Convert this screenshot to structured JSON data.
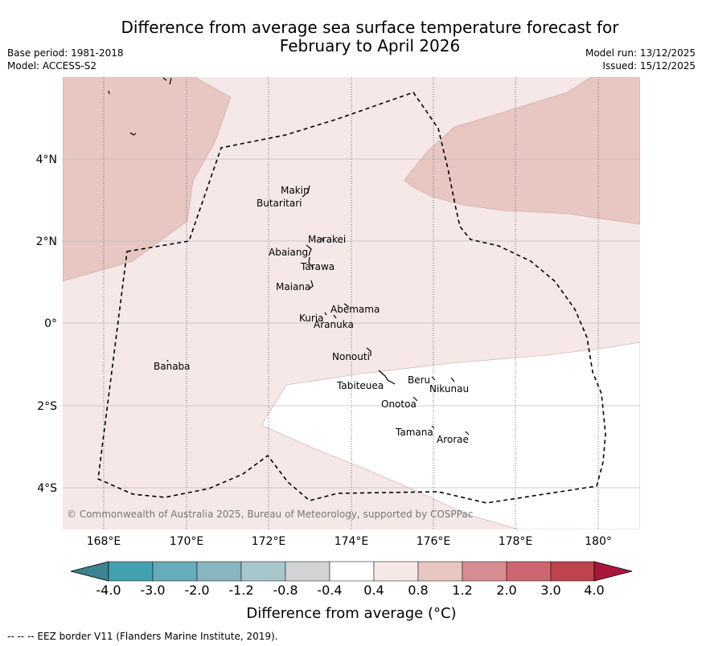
{
  "title": {
    "line1": "Difference from average sea surface temperature forecast for",
    "line2": "February to April 2026"
  },
  "meta": {
    "base_period": "Base period: 1981-2018",
    "model": "Model: ACCESS-S2",
    "model_run": "Model run: 13/12/2025",
    "issued": "Issued: 15/12/2025"
  },
  "map": {
    "lon_labels": [
      "168°E",
      "170°E",
      "172°E",
      "174°E",
      "176°E",
      "178°E",
      "180°"
    ],
    "lat_labels": [
      "4°N",
      "2°N",
      "0°",
      "2°S",
      "4°S"
    ],
    "lon_values": [
      168,
      170,
      172,
      174,
      176,
      178,
      180
    ],
    "lat_values": [
      4,
      2,
      0,
      -2,
      -4
    ],
    "extent": {
      "lon": [
        167,
        181
      ],
      "lat": [
        -5,
        6
      ]
    },
    "islands": [
      {
        "name": "Makin",
        "lon": 172.6,
        "lat": 3.2
      },
      {
        "name": "Butaritari",
        "lon": 172.3,
        "lat": 2.9
      },
      {
        "name": "Marakei",
        "lon": 173.35,
        "lat": 2.05
      },
      {
        "name": "Abaiang",
        "lon": 172.4,
        "lat": 1.75
      },
      {
        "name": "Tarawa",
        "lon": 173.15,
        "lat": 1.4
      },
      {
        "name": "Maiana",
        "lon": 172.55,
        "lat": 0.9
      },
      {
        "name": "Abemama",
        "lon": 174.0,
        "lat": 0.35
      },
      {
        "name": "Kuria",
        "lon": 172.95,
        "lat": 0.12
      },
      {
        "name": "Aranuka",
        "lon": 173.95,
        "lat": -0.02
      },
      {
        "name": "Nonouti",
        "lon": 173.95,
        "lat": -0.8
      },
      {
        "name": "Banaba",
        "lon": 169.6,
        "lat": -1.05
      },
      {
        "name": "Beru",
        "lon": 175.6,
        "lat": -1.37
      },
      {
        "name": "Nikunau",
        "lon": 176.35,
        "lat": -1.6
      },
      {
        "name": "Tabiteuea",
        "lon": 174.2,
        "lat": -1.55
      },
      {
        "name": "Onotoa",
        "lon": 175.1,
        "lat": -2.0
      },
      {
        "name": "Tamana",
        "lon": 175.5,
        "lat": -2.7
      },
      {
        "name": "Arorae",
        "lon": 176.4,
        "lat": -2.85
      }
    ],
    "copyright": "© Commonwealth of Australia 2025, Bureau of Meteorology, supported by COSPPac"
  },
  "colorbar": {
    "ticks": [
      "-4.0",
      "-3.0",
      "-2.0",
      "-1.2",
      "-0.8",
      "-0.4",
      "0.4",
      "0.8",
      "1.2",
      "2.0",
      "3.0",
      "4.0"
    ],
    "colors": [
      "#43a0b0",
      "#67acba",
      "#87b6c1",
      "#a8c7cc",
      "#d1d3d4",
      "#ffffff",
      "#f5e8e7",
      "#e8c6c2",
      "#d88d93",
      "#cc6670",
      "#c0434f"
    ],
    "under_color": "#3d8390",
    "over_color": "#a8183a",
    "label": "Difference from average (°C)"
  },
  "footer": "--  --  -- EEZ border V11 (Flanders Marine Institute, 2019)."
}
